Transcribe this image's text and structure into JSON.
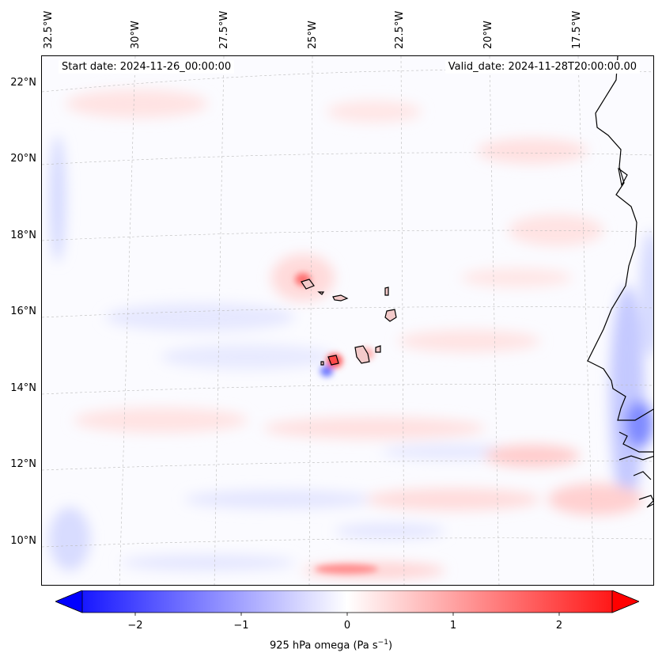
{
  "map": {
    "start_date": "Start date: 2024-11-26_00:00:00",
    "valid_date": "Valid_date: 2024-11-28T20:00:00.00",
    "lon_labels": [
      "32.5°W",
      "30°W",
      "27.5°W",
      "25°W",
      "22.5°W",
      "20°W",
      "17.5°W"
    ],
    "lat_labels": [
      "22°N",
      "20°N",
      "18°N",
      "16°N",
      "14°N",
      "12°N",
      "10°N"
    ],
    "colors": {
      "negative": "#0000ff",
      "zero": "#ffffff",
      "positive": "#ff0000",
      "coastline": "#000000",
      "gridline": "#bbbbbb"
    }
  },
  "colorbar": {
    "label_prefix": "925 hPa omega (Pa s",
    "label_exp": "−1",
    "label_suffix": ")",
    "ticks": [
      "−2",
      "−1",
      "0",
      "1",
      "2"
    ],
    "vmin": -2.5,
    "vmax": 2.5
  }
}
